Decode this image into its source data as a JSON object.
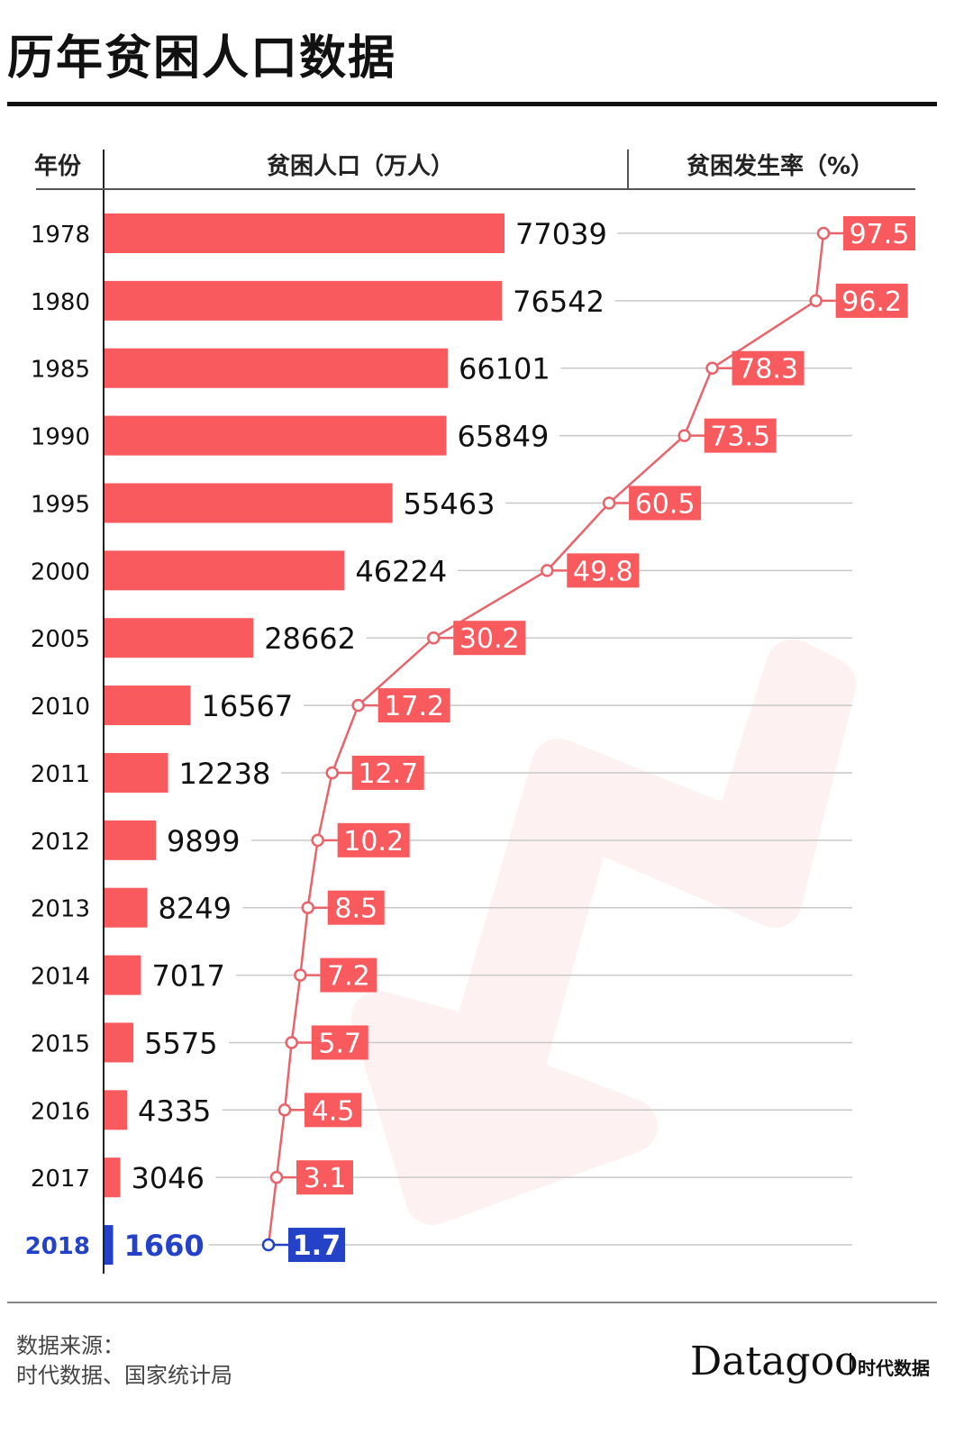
{
  "title": "历年贫困人口数据",
  "headers": {
    "year": "年份",
    "population": "贫困人口（万人）",
    "rate": "贫困发生率（%）"
  },
  "colors": {
    "bar": "#F85A5E",
    "highlight": "#2442C8",
    "line": "#E8636A",
    "gridline": "#C8C8C8",
    "watermark": "#FDF1F1"
  },
  "chart_data": {
    "type": "bar",
    "title": "历年贫困人口数据",
    "categories": [
      "1978",
      "1980",
      "1985",
      "1990",
      "1995",
      "2000",
      "2005",
      "2010",
      "2011",
      "2012",
      "2013",
      "2014",
      "2015",
      "2016",
      "2017",
      "2018"
    ],
    "series": [
      {
        "name": "贫困人口（万人）",
        "type": "bar",
        "values": [
          77039,
          76542,
          66101,
          65849,
          55463,
          46224,
          28662,
          16567,
          12238,
          9899,
          8249,
          7017,
          5575,
          4335,
          3046,
          1660
        ]
      },
      {
        "name": "贫困发生率（%）",
        "type": "line",
        "values": [
          97.5,
          96.2,
          78.3,
          73.5,
          60.5,
          49.8,
          30.2,
          17.2,
          12.7,
          10.2,
          8.5,
          7.2,
          5.7,
          4.5,
          3.1,
          1.7
        ]
      }
    ],
    "highlight_category": "2018",
    "xlabel": "",
    "ylabel": "年份",
    "grid": true
  },
  "footer": {
    "source_label": "数据来源：",
    "source_text": "时代数据、国家统计局",
    "logo": "Datagoo",
    "logo_cn": "时代数据"
  }
}
